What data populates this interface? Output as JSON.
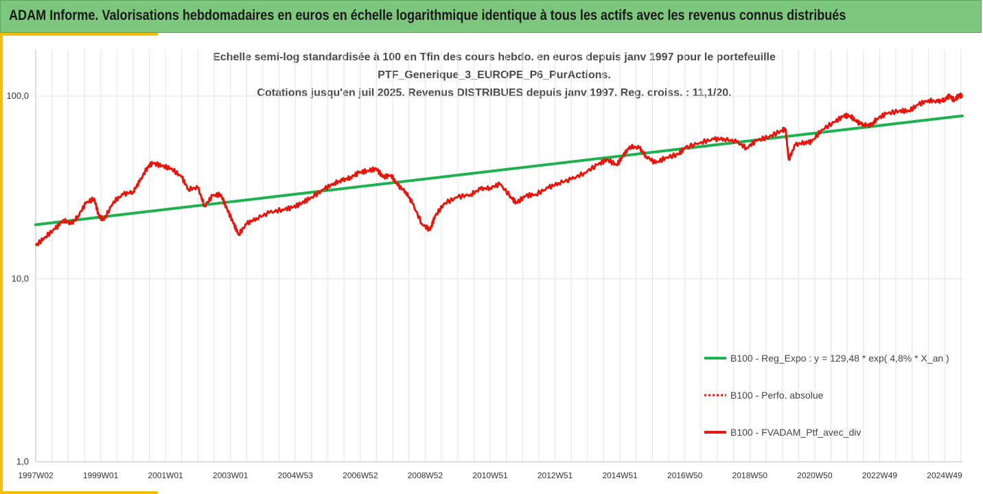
{
  "header": {
    "title": "ADAM Informe. Valorisations hebdomadaires en euros en échelle logarithmique identique à tous les actifs avec les revenus connus distribués"
  },
  "colors": {
    "banner_bg": "#7dc67e",
    "accent": "#f2c000",
    "regression": "#1db150",
    "series": "#e8150c",
    "grid": "#e3e3e3"
  },
  "chart_data": {
    "type": "line",
    "title_lines": [
      "Echelle semi-log standardisée à 100 en Tfin des cours hebdo.  en euros depuis janv 1997 pour le portefeuille",
      "PTF_Generique_3_EUROPE_P6_PurActions.",
      "Cotations  jusqu'en juil 2025. Revenus DISTRIBUES depuis janv 1997. Reg. croiss. : 11,1/20."
    ],
    "y_scale": "log",
    "ylim": [
      1,
      180
    ],
    "y_ticks": [
      {
        "value": 1,
        "label": "1,0"
      },
      {
        "value": 10,
        "label": "10,0"
      },
      {
        "value": 100,
        "label": "100,0"
      }
    ],
    "xlim": [
      1997.0,
      2025.55
    ],
    "x_ticks": [
      {
        "x": 1997.0,
        "label": "1997W02"
      },
      {
        "x": 1999.0,
        "label": "1999W01"
      },
      {
        "x": 2001.0,
        "label": "2001W01"
      },
      {
        "x": 2003.0,
        "label": "2003W01"
      },
      {
        "x": 2005.0,
        "label": "2004W53"
      },
      {
        "x": 2007.0,
        "label": "2006W52"
      },
      {
        "x": 2009.0,
        "label": "2008W52"
      },
      {
        "x": 2011.0,
        "label": "2010W51"
      },
      {
        "x": 2013.0,
        "label": "2012W51"
      },
      {
        "x": 2015.0,
        "label": "2014W51"
      },
      {
        "x": 2017.0,
        "label": "2016W50"
      },
      {
        "x": 2019.0,
        "label": "2018W50"
      },
      {
        "x": 2021.0,
        "label": "2020W50"
      },
      {
        "x": 2023.0,
        "label": "2022W49"
      },
      {
        "x": 2025.0,
        "label": "2024W49"
      }
    ],
    "grid": true,
    "legend_position": "bottom-right",
    "series": [
      {
        "name": "B100 - Reg_Expo : y = 129,48 * exp( 4,8% *  X_an )",
        "style": "solid-thick",
        "color": "#1db150",
        "points": [
          [
            1997.0,
            19.8
          ],
          [
            2025.55,
            78.0
          ]
        ]
      },
      {
        "name": "B100 - Perfo. absolue",
        "style": "dotted",
        "color": "#e8150c",
        "points": []
      },
      {
        "name": "B100 - FVADAM_Ptf_avec_div",
        "style": "solid",
        "color": "#e8150c",
        "points": [
          [
            1997.0,
            15.2
          ],
          [
            1997.3,
            17.0
          ],
          [
            1997.6,
            18.8
          ],
          [
            1997.85,
            21.0
          ],
          [
            1998.1,
            20.0
          ],
          [
            1998.3,
            22.0
          ],
          [
            1998.55,
            26.0
          ],
          [
            1998.8,
            27.5
          ],
          [
            1998.95,
            22.0
          ],
          [
            1999.1,
            21.0
          ],
          [
            1999.4,
            26.5
          ],
          [
            1999.7,
            29.0
          ],
          [
            2000.0,
            30.0
          ],
          [
            2000.2,
            34.0
          ],
          [
            2000.45,
            41.0
          ],
          [
            2000.6,
            43.0
          ],
          [
            2000.9,
            41.5
          ],
          [
            2001.2,
            40.0
          ],
          [
            2001.5,
            36.0
          ],
          [
            2001.7,
            31.0
          ],
          [
            2002.0,
            31.5
          ],
          [
            2002.2,
            25.0
          ],
          [
            2002.45,
            28.5
          ],
          [
            2002.7,
            29.0
          ],
          [
            2002.9,
            24.0
          ],
          [
            2003.1,
            20.0
          ],
          [
            2003.25,
            17.5
          ],
          [
            2003.5,
            20.0
          ],
          [
            2003.8,
            21.5
          ],
          [
            2004.2,
            23.0
          ],
          [
            2004.6,
            24.0
          ],
          [
            2004.9,
            24.5
          ],
          [
            2005.2,
            26.0
          ],
          [
            2005.5,
            28.0
          ],
          [
            2005.9,
            31.0
          ],
          [
            2006.2,
            33.5
          ],
          [
            2006.45,
            34.5
          ],
          [
            2006.7,
            36.0
          ],
          [
            2006.95,
            38.0
          ],
          [
            2007.2,
            39.0
          ],
          [
            2007.5,
            40.0
          ],
          [
            2007.7,
            36.0
          ],
          [
            2007.95,
            37.0
          ],
          [
            2008.15,
            32.5
          ],
          [
            2008.4,
            30.0
          ],
          [
            2008.6,
            26.0
          ],
          [
            2008.9,
            20.0
          ],
          [
            2009.15,
            18.5
          ],
          [
            2009.3,
            22.0
          ],
          [
            2009.6,
            26.0
          ],
          [
            2010.0,
            28.0
          ],
          [
            2010.4,
            29.0
          ],
          [
            2010.7,
            31.0
          ],
          [
            2011.0,
            31.5
          ],
          [
            2011.3,
            33.0
          ],
          [
            2011.65,
            28.0
          ],
          [
            2011.8,
            26.0
          ],
          [
            2012.1,
            28.5
          ],
          [
            2012.4,
            29.0
          ],
          [
            2012.8,
            31.5
          ],
          [
            2013.1,
            33.5
          ],
          [
            2013.5,
            35.0
          ],
          [
            2013.9,
            38.0
          ],
          [
            2014.3,
            42.0
          ],
          [
            2014.6,
            45.0
          ],
          [
            2014.9,
            42.0
          ],
          [
            2015.1,
            47.0
          ],
          [
            2015.3,
            53.0
          ],
          [
            2015.6,
            52.0
          ],
          [
            2015.8,
            47.0
          ],
          [
            2016.1,
            43.0
          ],
          [
            2016.4,
            46.0
          ],
          [
            2016.8,
            48.0
          ],
          [
            2017.0,
            52.0
          ],
          [
            2017.5,
            56.0
          ],
          [
            2017.9,
            58.0
          ],
          [
            2018.2,
            58.5
          ],
          [
            2018.6,
            56.0
          ],
          [
            2018.9,
            52.0
          ],
          [
            2019.2,
            57.0
          ],
          [
            2019.6,
            60.0
          ],
          [
            2020.0,
            65.0
          ],
          [
            2020.1,
            66.0
          ],
          [
            2020.2,
            45.0
          ],
          [
            2020.4,
            54.0
          ],
          [
            2020.7,
            56.0
          ],
          [
            2020.9,
            56.0
          ],
          [
            2021.2,
            65.0
          ],
          [
            2021.6,
            72.0
          ],
          [
            2021.9,
            78.0
          ],
          [
            2022.1,
            78.0
          ],
          [
            2022.3,
            72.0
          ],
          [
            2022.5,
            70.0
          ],
          [
            2022.75,
            69.0
          ],
          [
            2022.9,
            75.0
          ],
          [
            2023.2,
            80.0
          ],
          [
            2023.6,
            83.0
          ],
          [
            2023.9,
            83.0
          ],
          [
            2024.2,
            90.0
          ],
          [
            2024.5,
            95.0
          ],
          [
            2024.8,
            93.0
          ],
          [
            2025.0,
            96.0
          ],
          [
            2025.15,
            100.0
          ],
          [
            2025.3,
            95.0
          ],
          [
            2025.45,
            101.0
          ],
          [
            2025.55,
            100.0
          ]
        ]
      }
    ]
  }
}
